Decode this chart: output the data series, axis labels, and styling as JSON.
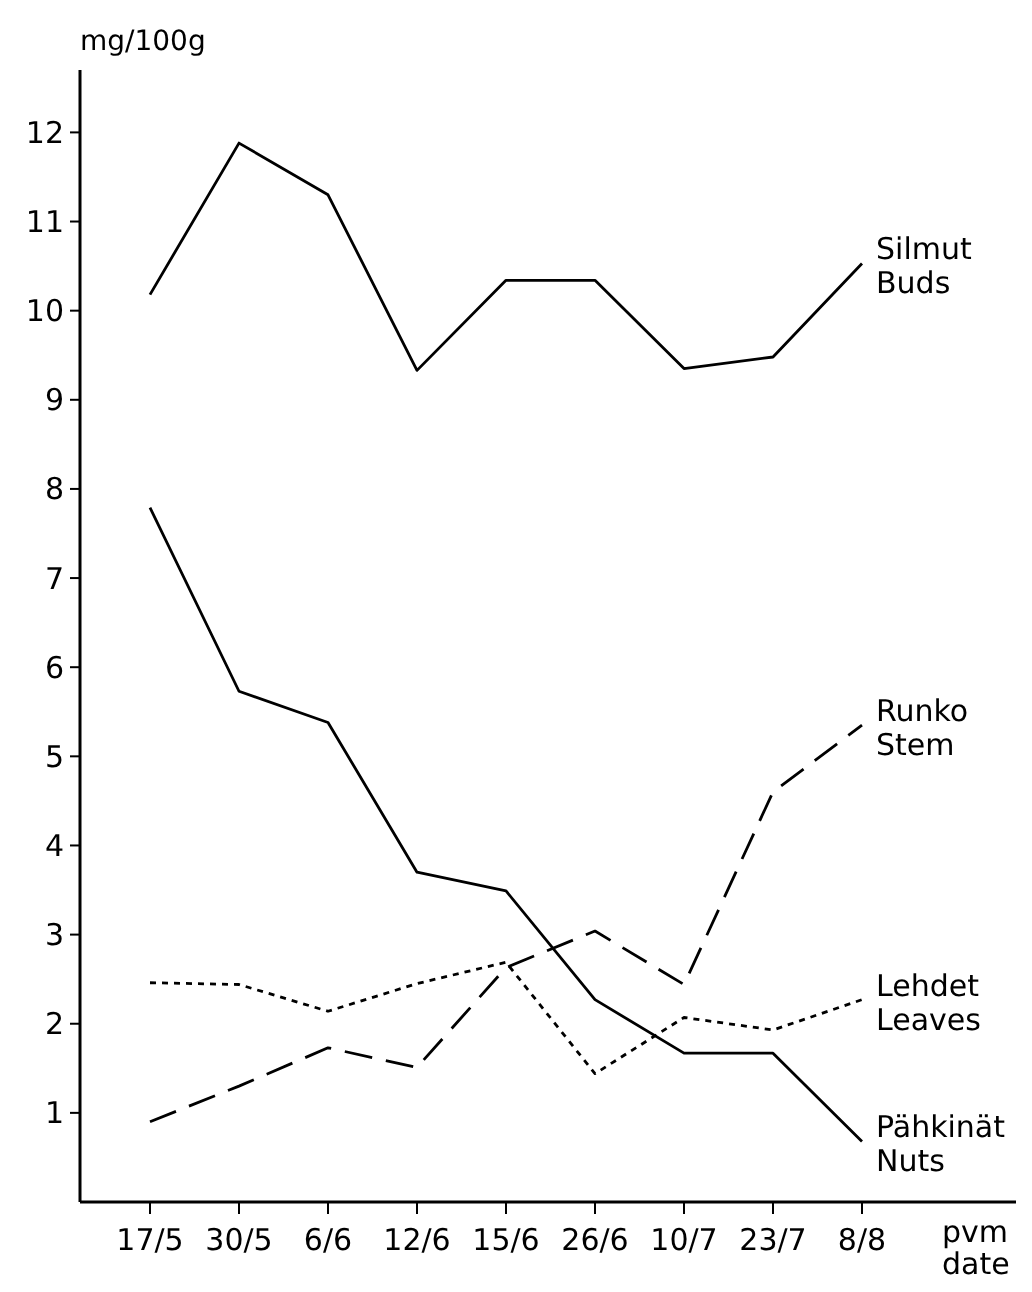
{
  "chart_data": {
    "type": "line",
    "ylabel": "mg/100g",
    "xlabel": "pvm date",
    "categories": [
      "17/5",
      "30/5",
      "6/6",
      "12/6",
      "15/6",
      "26/6",
      "10/7",
      "23/7",
      "8/8"
    ],
    "ylim": [
      0,
      12.7
    ],
    "yticks": [
      1,
      2,
      3,
      4,
      5,
      6,
      7,
      8,
      9,
      10,
      11,
      12
    ],
    "grid": false,
    "legend": false,
    "marker": "none",
    "series": [
      {
        "name": "Silmut Buds",
        "color": "#000000",
        "line_style": "solid",
        "values": [
          10.18,
          11.88,
          11.3,
          9.33,
          10.34,
          10.34,
          9.35,
          9.48,
          10.53
        ]
      },
      {
        "name": "Runko Stem",
        "color": "#000000",
        "line_style": "dashed",
        "values": [
          0.9,
          1.3,
          1.73,
          1.51,
          2.63,
          3.04,
          2.44,
          4.6,
          5.35
        ]
      },
      {
        "name": "Lehdet Leaves",
        "color": "#000000",
        "line_style": "dotted",
        "values": [
          2.46,
          2.44,
          2.14,
          2.45,
          2.69,
          1.44,
          2.07,
          1.93,
          2.27
        ]
      },
      {
        "name": "Pähkinät Nuts",
        "color": "#000000",
        "line_style": "solid",
        "values": [
          7.79,
          5.73,
          5.38,
          3.7,
          3.49,
          2.27,
          1.67,
          1.67,
          0.68
        ]
      }
    ]
  }
}
